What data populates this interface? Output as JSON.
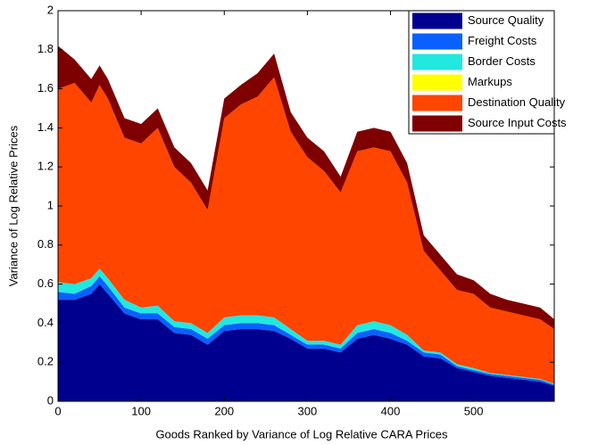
{
  "chart_data": {
    "type": "stacked_area",
    "x_label": "Goods Ranked by Variance of Log Relative CARA Prices",
    "y_label": "Variance of Log Relative Prices",
    "x": [
      0,
      20,
      40,
      50,
      60,
      80,
      100,
      120,
      140,
      160,
      180,
      200,
      220,
      240,
      260,
      280,
      300,
      320,
      340,
      360,
      380,
      400,
      420,
      440,
      460,
      480,
      500,
      520,
      540,
      560,
      580,
      597
    ],
    "series": [
      {
        "name": "Source Quality",
        "color": "#00008f",
        "values": [
          0.52,
          0.52,
          0.55,
          0.6,
          0.55,
          0.45,
          0.42,
          0.42,
          0.35,
          0.34,
          0.29,
          0.36,
          0.37,
          0.37,
          0.36,
          0.32,
          0.27,
          0.27,
          0.25,
          0.32,
          0.34,
          0.32,
          0.29,
          0.23,
          0.22,
          0.17,
          0.15,
          0.13,
          0.12,
          0.11,
          0.1,
          0.08
        ]
      },
      {
        "name": "Freight Costs",
        "color": "#0a60ff",
        "values": [
          0.04,
          0.03,
          0.04,
          0.04,
          0.04,
          0.03,
          0.03,
          0.03,
          0.03,
          0.03,
          0.03,
          0.03,
          0.03,
          0.03,
          0.03,
          0.02,
          0.02,
          0.02,
          0.02,
          0.03,
          0.03,
          0.03,
          0.02,
          0.02,
          0.02,
          0.01,
          0.01,
          0.01,
          0.01,
          0.01,
          0.01,
          0.005
        ]
      },
      {
        "name": "Border Costs",
        "color": "#22e8e0",
        "values": [
          0.05,
          0.05,
          0.04,
          0.04,
          0.04,
          0.04,
          0.03,
          0.04,
          0.03,
          0.03,
          0.03,
          0.04,
          0.04,
          0.04,
          0.04,
          0.03,
          0.02,
          0.02,
          0.02,
          0.04,
          0.04,
          0.04,
          0.03,
          0.01,
          0.01,
          0.01,
          0.01,
          0.005,
          0.005,
          0.005,
          0.005,
          0.005
        ]
      },
      {
        "name": "Markups",
        "color": "#ffff00",
        "values": [
          0,
          0,
          0,
          0,
          0,
          0,
          0,
          0,
          0,
          0,
          0,
          0,
          0,
          0,
          0,
          0,
          0,
          0,
          0,
          0,
          0,
          0,
          0,
          0,
          0,
          0,
          0,
          0,
          0,
          0,
          0,
          0
        ]
      },
      {
        "name": "Destination Quality",
        "color": "#ff4500",
        "values": [
          0.99,
          1.03,
          0.9,
          0.94,
          0.92,
          0.83,
          0.84,
          0.91,
          0.79,
          0.72,
          0.63,
          1.02,
          1.08,
          1.12,
          1.23,
          1.01,
          0.94,
          0.87,
          0.78,
          0.89,
          0.89,
          0.89,
          0.78,
          0.51,
          0.42,
          0.38,
          0.38,
          0.335,
          0.325,
          0.315,
          0.305,
          0.28
        ]
      },
      {
        "name": "Source Input Costs",
        "color": "#7f0000",
        "values": [
          0.22,
          0.12,
          0.12,
          0.1,
          0.1,
          0.1,
          0.1,
          0.1,
          0.1,
          0.1,
          0.1,
          0.1,
          0.1,
          0.12,
          0.12,
          0.1,
          0.1,
          0.1,
          0.08,
          0.1,
          0.1,
          0.1,
          0.1,
          0.08,
          0.08,
          0.08,
          0.07,
          0.07,
          0.06,
          0.06,
          0.06,
          0.05
        ]
      }
    ],
    "xlim": [
      0,
      597
    ],
    "ylim": [
      0,
      2
    ],
    "xticks": [
      0,
      100,
      200,
      300,
      400,
      500
    ],
    "yticks": [
      0,
      0.2,
      0.4,
      0.6,
      0.8,
      1,
      1.2,
      1.4,
      1.6,
      1.8,
      2
    ],
    "legend": "upper right"
  }
}
